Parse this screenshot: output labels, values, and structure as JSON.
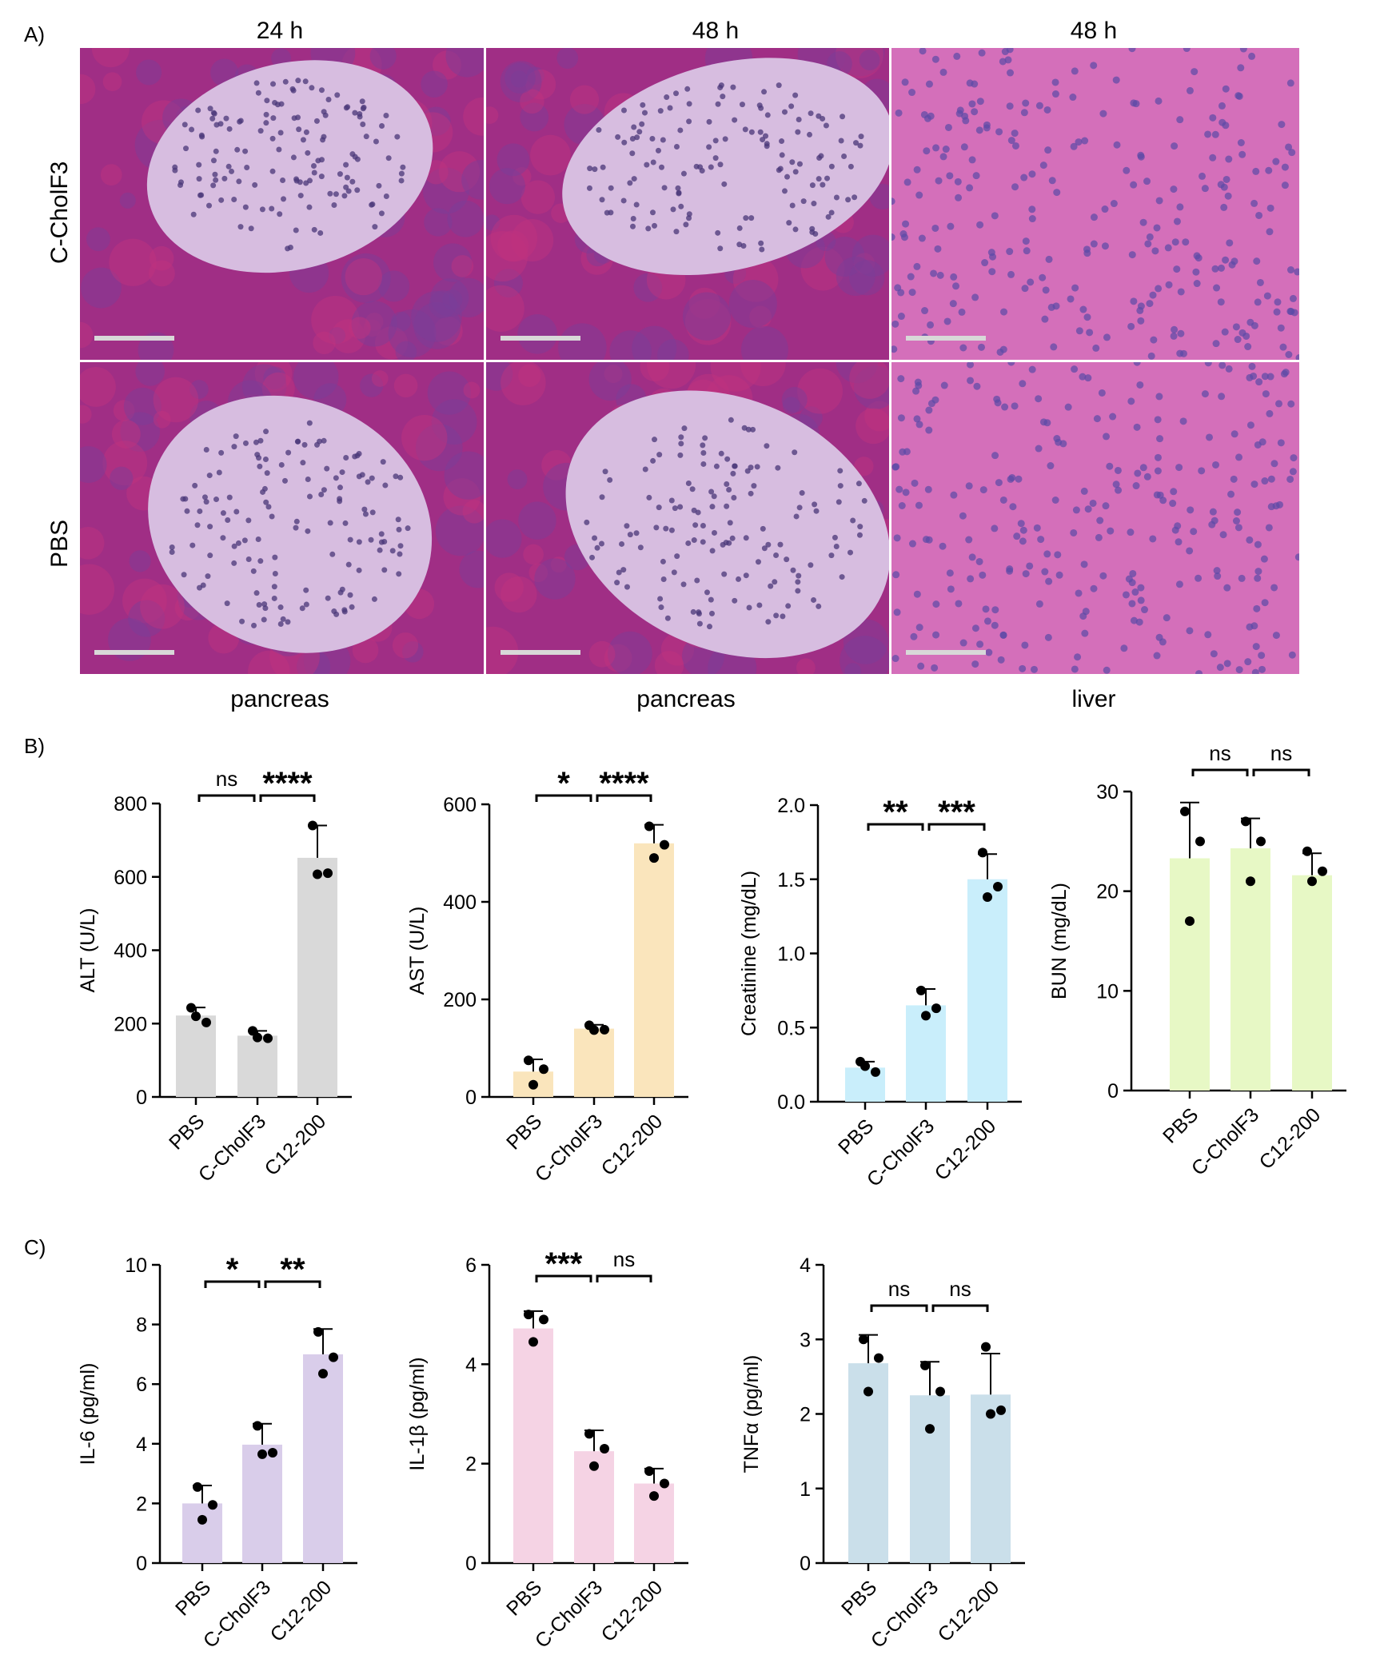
{
  "panel_labels": {
    "a": "A)",
    "b": "B)",
    "c": "C)"
  },
  "histology": {
    "columns": [
      "24 h",
      "48 h",
      "48 h"
    ],
    "rows": [
      "C-CholF3",
      "PBS"
    ],
    "tissues": [
      "pancreas",
      "pancreas",
      "liver"
    ]
  },
  "colors": {
    "gray": "#d9d9d9",
    "orange": "#fae5bc",
    "cyan": "#c9eefb",
    "green": "#e7f8c5",
    "purple": "#d9cdea",
    "pink": "#f5d3e4",
    "steel": "#cadfea",
    "acinar": "#a02e85",
    "islet": "#d7bde0",
    "liver": "#d46fba",
    "nucleus": "#4a3778"
  },
  "chart_data": [
    {
      "type": "bar",
      "ylabel": "ALT (U/L)",
      "categories": [
        "PBS",
        "C-CholF3",
        "C12-200"
      ],
      "values": [
        222,
        167,
        652
      ],
      "errors": [
        22,
        13,
        88
      ],
      "points": [
        [
          243,
          203,
          220
        ],
        [
          180,
          160,
          162
        ],
        [
          740,
          610,
          607
        ]
      ],
      "ylim": [
        0,
        800
      ],
      "yticks": [
        "0",
        "200",
        "400",
        "600",
        "800"
      ],
      "sig": [
        "ns",
        "****"
      ],
      "color": "gray"
    },
    {
      "type": "bar",
      "ylabel": "AST (U/L)",
      "categories": [
        "PBS",
        "C-CholF3",
        "C12-200"
      ],
      "values": [
        52,
        140,
        520
      ],
      "errors": [
        25,
        8,
        38
      ],
      "points": [
        [
          75,
          57,
          25
        ],
        [
          147,
          138,
          137
        ],
        [
          555,
          517,
          490
        ]
      ],
      "ylim": [
        0,
        600
      ],
      "yticks": [
        "0",
        "200",
        "400",
        "600"
      ],
      "sig": [
        "*",
        "****"
      ],
      "color": "orange"
    },
    {
      "type": "bar",
      "ylabel": "Creatinine (mg/dL)",
      "categories": [
        "PBS",
        "C-CholF3",
        "C12-200"
      ],
      "values": [
        0.23,
        0.65,
        1.5
      ],
      "errors": [
        0.04,
        0.11,
        0.17
      ],
      "points": [
        [
          0.27,
          0.2,
          0.24
        ],
        [
          0.75,
          0.63,
          0.58
        ],
        [
          1.68,
          1.45,
          1.38
        ]
      ],
      "ylim": [
        0,
        2.0
      ],
      "yticks": [
        "0.0",
        "0.5",
        "1.0",
        "1.5",
        "2.0"
      ],
      "sig": [
        "**",
        "***"
      ],
      "color": "cyan"
    },
    {
      "type": "bar",
      "ylabel": "BUN (mg/dL)",
      "categories": [
        "PBS",
        "C-CholF3",
        "C12-200"
      ],
      "values": [
        23.3,
        24.3,
        21.6
      ],
      "errors": [
        5.6,
        3.0,
        2.2
      ],
      "points": [
        [
          28,
          25,
          17
        ],
        [
          27,
          25,
          21
        ],
        [
          24,
          22,
          21
        ]
      ],
      "ylim": [
        0,
        30
      ],
      "yticks": [
        "0",
        "10",
        "20",
        "30"
      ],
      "sig": [
        "ns",
        "ns"
      ],
      "color": "green"
    },
    {
      "type": "bar",
      "ylabel": "IL-6 (pg/ml)",
      "categories": [
        "PBS",
        "C-CholF3",
        "C12-200"
      ],
      "values": [
        2.0,
        3.97,
        7.0
      ],
      "errors": [
        0.6,
        0.7,
        0.85
      ],
      "points": [
        [
          2.55,
          1.95,
          1.45
        ],
        [
          4.6,
          3.7,
          3.65
        ],
        [
          7.75,
          6.9,
          6.35
        ]
      ],
      "ylim": [
        0,
        10
      ],
      "yticks": [
        "0",
        "2",
        "4",
        "6",
        "8",
        "10"
      ],
      "sig": [
        "*",
        "**"
      ],
      "color": "purple"
    },
    {
      "type": "bar",
      "ylabel": "IL-1β (pg/ml)",
      "categories": [
        "PBS",
        "C-CholF3",
        "C12-200"
      ],
      "values": [
        4.72,
        2.25,
        1.6
      ],
      "errors": [
        0.35,
        0.42,
        0.3
      ],
      "points": [
        [
          5.0,
          4.9,
          4.45
        ],
        [
          2.6,
          2.3,
          1.95
        ],
        [
          1.85,
          1.6,
          1.35
        ]
      ],
      "ylim": [
        0,
        6
      ],
      "yticks": [
        "0",
        "2",
        "4",
        "6"
      ],
      "sig": [
        "***",
        "ns"
      ],
      "color": "pink"
    },
    {
      "type": "bar",
      "ylabel": "TNFα (pg/ml)",
      "categories": [
        "PBS",
        "C-CholF3",
        "C12-200"
      ],
      "values": [
        2.68,
        2.25,
        2.26
      ],
      "errors": [
        0.38,
        0.45,
        0.55
      ],
      "points": [
        [
          3.0,
          2.75,
          2.3
        ],
        [
          2.65,
          2.3,
          1.8
        ],
        [
          2.9,
          2.05,
          2.0
        ]
      ],
      "ylim": [
        0,
        4
      ],
      "yticks": [
        "0",
        "1",
        "2",
        "3",
        "4"
      ],
      "sig": [
        "ns",
        "ns"
      ],
      "color": "steel"
    }
  ]
}
